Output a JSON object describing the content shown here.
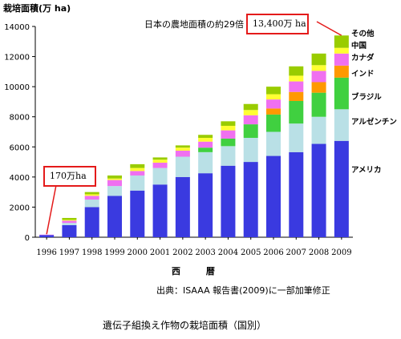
{
  "chart_data": {
    "type": "bar",
    "stacked": true,
    "ylabel": "栽培面積(万 ha)",
    "xlabel": "西 暦",
    "ylim": [
      0,
      14000
    ],
    "yticks": [
      0,
      2000,
      4000,
      6000,
      8000,
      10000,
      12000,
      14000
    ],
    "grid": false,
    "categories": [
      "1996",
      "1997",
      "1998",
      "1999",
      "2000",
      "2001",
      "2002",
      "2003",
      "2004",
      "2005",
      "2006",
      "2007",
      "2008",
      "2009"
    ],
    "series": [
      {
        "name": "アメリカ",
        "color": "#3a3ae0",
        "values": [
          150,
          800,
          2000,
          2750,
          3100,
          3500,
          4000,
          4250,
          4750,
          5000,
          5400,
          5650,
          6200,
          6400
        ]
      },
      {
        "name": "アルゼンチン",
        "color": "#b9e0e6",
        "values": [
          0,
          150,
          500,
          650,
          1000,
          1100,
          1350,
          1400,
          1300,
          1600,
          1600,
          1900,
          1800,
          2100
        ]
      },
      {
        "name": "ブラジル",
        "color": "#40d040",
        "values": [
          0,
          0,
          0,
          0,
          0,
          0,
          0,
          300,
          500,
          900,
          1150,
          1500,
          1600,
          2100
        ]
      },
      {
        "name": "インド",
        "color": "#ff9900",
        "values": [
          0,
          0,
          0,
          0,
          0,
          0,
          0,
          0,
          0,
          0,
          400,
          600,
          700,
          800
        ]
      },
      {
        "name": "カナダ",
        "color": "#f070f0",
        "values": [
          20,
          150,
          250,
          400,
          300,
          350,
          400,
          400,
          550,
          600,
          600,
          700,
          750,
          800
        ]
      },
      {
        "name": "中国",
        "color": "#ffff33",
        "values": [
          0,
          50,
          100,
          100,
          200,
          200,
          200,
          250,
          300,
          350,
          350,
          380,
          380,
          380
        ]
      },
      {
        "name": "その他",
        "color": "#99cc00",
        "values": [
          0,
          130,
          150,
          200,
          250,
          150,
          150,
          200,
          300,
          400,
          500,
          620,
          770,
          820
        ]
      }
    ]
  },
  "annotations": {
    "area_ratio_text": "日本の農地面積の約29倍 ＝",
    "total_2009_box": "13,400万 ha",
    "total_1996_box": "170万ha"
  },
  "source_text": "出典：ISAAA 報告書(2009)に一部加筆修正",
  "caption": "遺伝子組換え作物の栽培面積（国別）",
  "colors": {
    "highlight_box": "#e41a1a"
  }
}
